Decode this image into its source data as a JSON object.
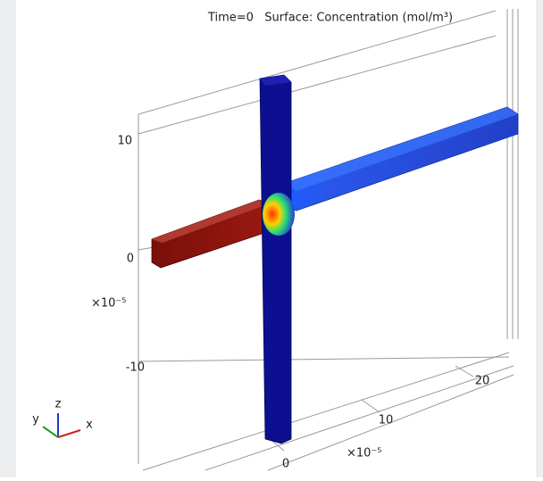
{
  "title": "Time=0   Surface: Concentration (mol/m³)",
  "z_axis": {
    "ticks": [
      "10",
      "0",
      "-10"
    ],
    "multiplier": "×10⁻⁵"
  },
  "x_axis": {
    "ticks": [
      "0",
      "10",
      "20"
    ],
    "multiplier": "×10⁻⁵"
  },
  "triad": {
    "z": "z",
    "y": "y",
    "x": "x"
  }
}
